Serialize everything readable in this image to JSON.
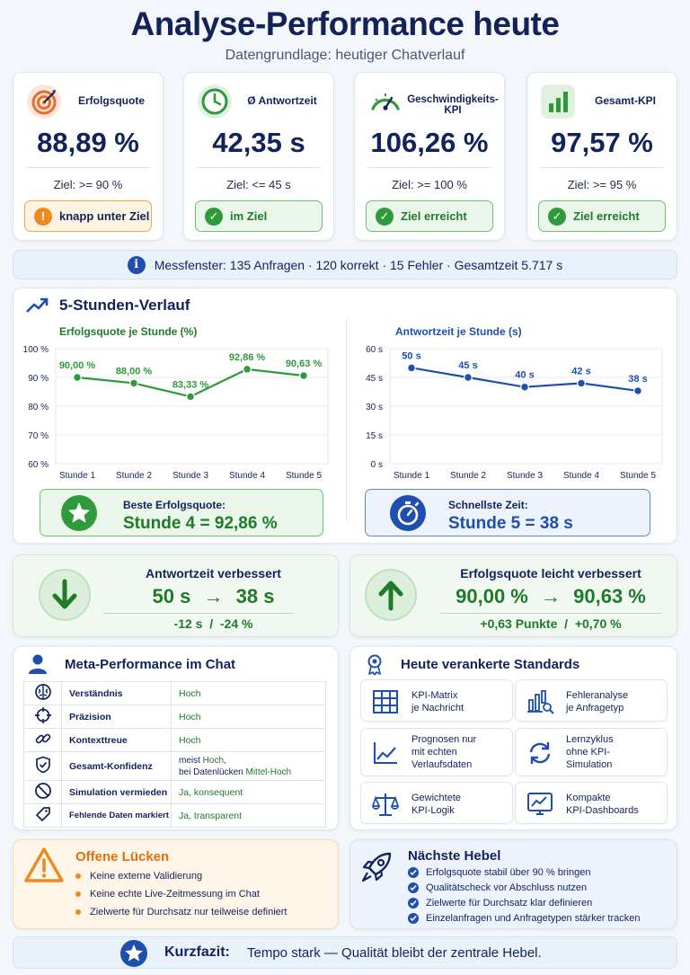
{
  "header": {
    "title": "Analyse-Performance heute",
    "subtitle": "Datengrundlage: heutiger Chatverlauf"
  },
  "kpis": [
    {
      "label": "Erfolgsquote",
      "value": "88,89 %",
      "target": "Ziel: >= 90 %",
      "badge": "knapp unter Ziel",
      "status": "warn",
      "icon": "target-icon"
    },
    {
      "label": "Ø Antwortzeit",
      "value": "42,35 s",
      "target": "Ziel: <= 45 s",
      "badge": "im Ziel",
      "status": "ok",
      "icon": "clock-icon"
    },
    {
      "label": "Geschwindigkeits-KPI",
      "value": "106,26 %",
      "target": "Ziel: >= 100 %",
      "badge": "Ziel erreicht",
      "status": "ok",
      "icon": "speedometer-icon"
    },
    {
      "label": "Gesamt-KPI",
      "value": "97,57 %",
      "target": "Ziel: >= 95 %",
      "badge": "Ziel erreicht",
      "status": "ok",
      "icon": "bar-chart-icon"
    }
  ],
  "info": {
    "text": "Messfenster: 135 Anfragen · 120 korrekt · 15 Fehler · Gesamtzeit 5.717 s"
  },
  "trend": {
    "heading": "5-Stunden-Verlauf"
  },
  "chart_data": [
    {
      "type": "line",
      "title": "Erfolgsquote je Stunde (%)",
      "categories": [
        "Stunde 1",
        "Stunde 2",
        "Stunde 3",
        "Stunde 4",
        "Stunde 5"
      ],
      "values": [
        90.0,
        88.0,
        83.33,
        92.86,
        90.63
      ],
      "data_labels": [
        "90,00 %",
        "88,00 %",
        "83,33 %",
        "92,86 %",
        "90,63 %"
      ],
      "ylim": [
        60,
        100
      ],
      "yticks": [
        60,
        70,
        80,
        90,
        100
      ],
      "ytick_labels": [
        "60 %",
        "70 %",
        "80 %",
        "90 %",
        "100 %"
      ],
      "grid": true,
      "color": "#2e9a3a"
    },
    {
      "type": "line",
      "title": "Antwortzeit je Stunde (s)",
      "categories": [
        "Stunde 1",
        "Stunde 2",
        "Stunde 3",
        "Stunde 4",
        "Stunde 5"
      ],
      "values": [
        50,
        45,
        40,
        42,
        38
      ],
      "data_labels": [
        "50 s",
        "45 s",
        "40 s",
        "42 s",
        "38 s"
      ],
      "ylim": [
        0,
        60
      ],
      "yticks": [
        0,
        15,
        30,
        45,
        60
      ],
      "ytick_labels": [
        "0 s",
        "15 s",
        "30 s",
        "45 s",
        "60 s"
      ],
      "grid": true,
      "color": "#1e4fae"
    }
  ],
  "best": {
    "label": "Beste Erfolgsquote:",
    "value": "Stunde 4 = 92,86 %"
  },
  "fastest": {
    "label": "Schnellste Zeit:",
    "value": "Stunde 5 = 38 s"
  },
  "improvements": [
    {
      "label": "Antwortzeit verbessert",
      "from": "50 s",
      "arrow": "→",
      "to": "38 s",
      "delta": "-12 s  /  -24 %",
      "icon": "arrow-down-icon"
    },
    {
      "label": "Erfolgsquote leicht verbessert",
      "from": "90,00 %",
      "arrow": "→",
      "to": "90,63 %",
      "delta": "+0,63 Punkte  /  +0,70 %",
      "icon": "arrow-up-icon"
    }
  ],
  "meta": {
    "heading": "Meta-Performance im Chat",
    "rows": [
      {
        "label": "Verständnis",
        "value": "Hoch",
        "icon": "brain-icon"
      },
      {
        "label": "Präzision",
        "value": "Hoch",
        "icon": "crosshair-icon"
      },
      {
        "label": "Kontexttreue",
        "value": "Hoch",
        "icon": "link-icon"
      },
      {
        "label": "Gesamt-Konfidenz",
        "value_pre": "meist ",
        "value_hi": "Hoch",
        "value_mid": ",",
        "value_pre2": "bei Datenlücken ",
        "value_hi2": "Mittel-Hoch",
        "icon": "shield-check-icon"
      },
      {
        "label": "Simulation vermieden",
        "value": "Ja, konsequent",
        "icon": "ban-icon"
      },
      {
        "label": "Fehlende Daten markiert",
        "value": "Ja, transparent",
        "icon": "tag-icon"
      }
    ]
  },
  "standards": {
    "heading": "Heute verankerte Standards",
    "items": [
      {
        "line1": "KPI-Matrix",
        "line2": "je Nachricht",
        "line3": "",
        "icon": "grid-icon"
      },
      {
        "line1": "Fehleranalyse",
        "line2": "je Anfragetyp",
        "line3": "",
        "icon": "chart-search-icon"
      },
      {
        "line1": "Prognosen nur",
        "line2": "mit echten",
        "line3": "Verlaufsdaten",
        "icon": "trend-line-icon"
      },
      {
        "line1": "Lernzyklus",
        "line2": "ohne KPI-",
        "line3": "Simulation",
        "icon": "refresh-icon"
      },
      {
        "line1": "Gewichtete",
        "line2": "KPI-Logik",
        "line3": "",
        "icon": "scales-icon"
      },
      {
        "line1": "Kompakte",
        "line2": "KPI-Dashboards",
        "line3": "",
        "icon": "dashboard-icon"
      }
    ]
  },
  "gaps": {
    "heading": "Offene Lücken",
    "items": [
      "Keine externe Validierung",
      "Keine echte Live-Zeitmessung im Chat",
      "Zielwerte für Durchsatz nur teilweise definiert"
    ]
  },
  "levers": {
    "heading": "Nächste Hebel",
    "items": [
      "Erfolgsquote stabil über 90 % bringen",
      "Qualitätscheck vor Abschluss nutzen",
      "Zielwerte für Durchsatz klar definieren",
      "Einzelanfragen und Anfragetypen stärker tracken"
    ]
  },
  "summary": {
    "label": "Kurzfazit:",
    "text": "Tempo stark — Qualität bleibt der zentrale Hebel."
  }
}
